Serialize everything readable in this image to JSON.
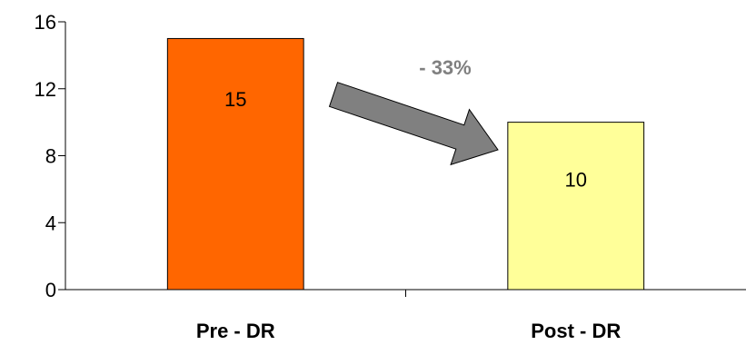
{
  "chart_data": {
    "type": "bar",
    "categories": [
      "Pre - DR",
      "Post - DR"
    ],
    "values": [
      15,
      10
    ],
    "data_labels": [
      "15",
      "10"
    ],
    "bar_colors": [
      "#ff6600",
      "#ffff99"
    ],
    "ylim": [
      0,
      16
    ],
    "yticks": [
      "0",
      "4",
      "8",
      "12",
      "16"
    ],
    "grid": false,
    "annotation": {
      "text": "- 33%",
      "color": "#808080",
      "arrow_color": "#808080"
    }
  }
}
